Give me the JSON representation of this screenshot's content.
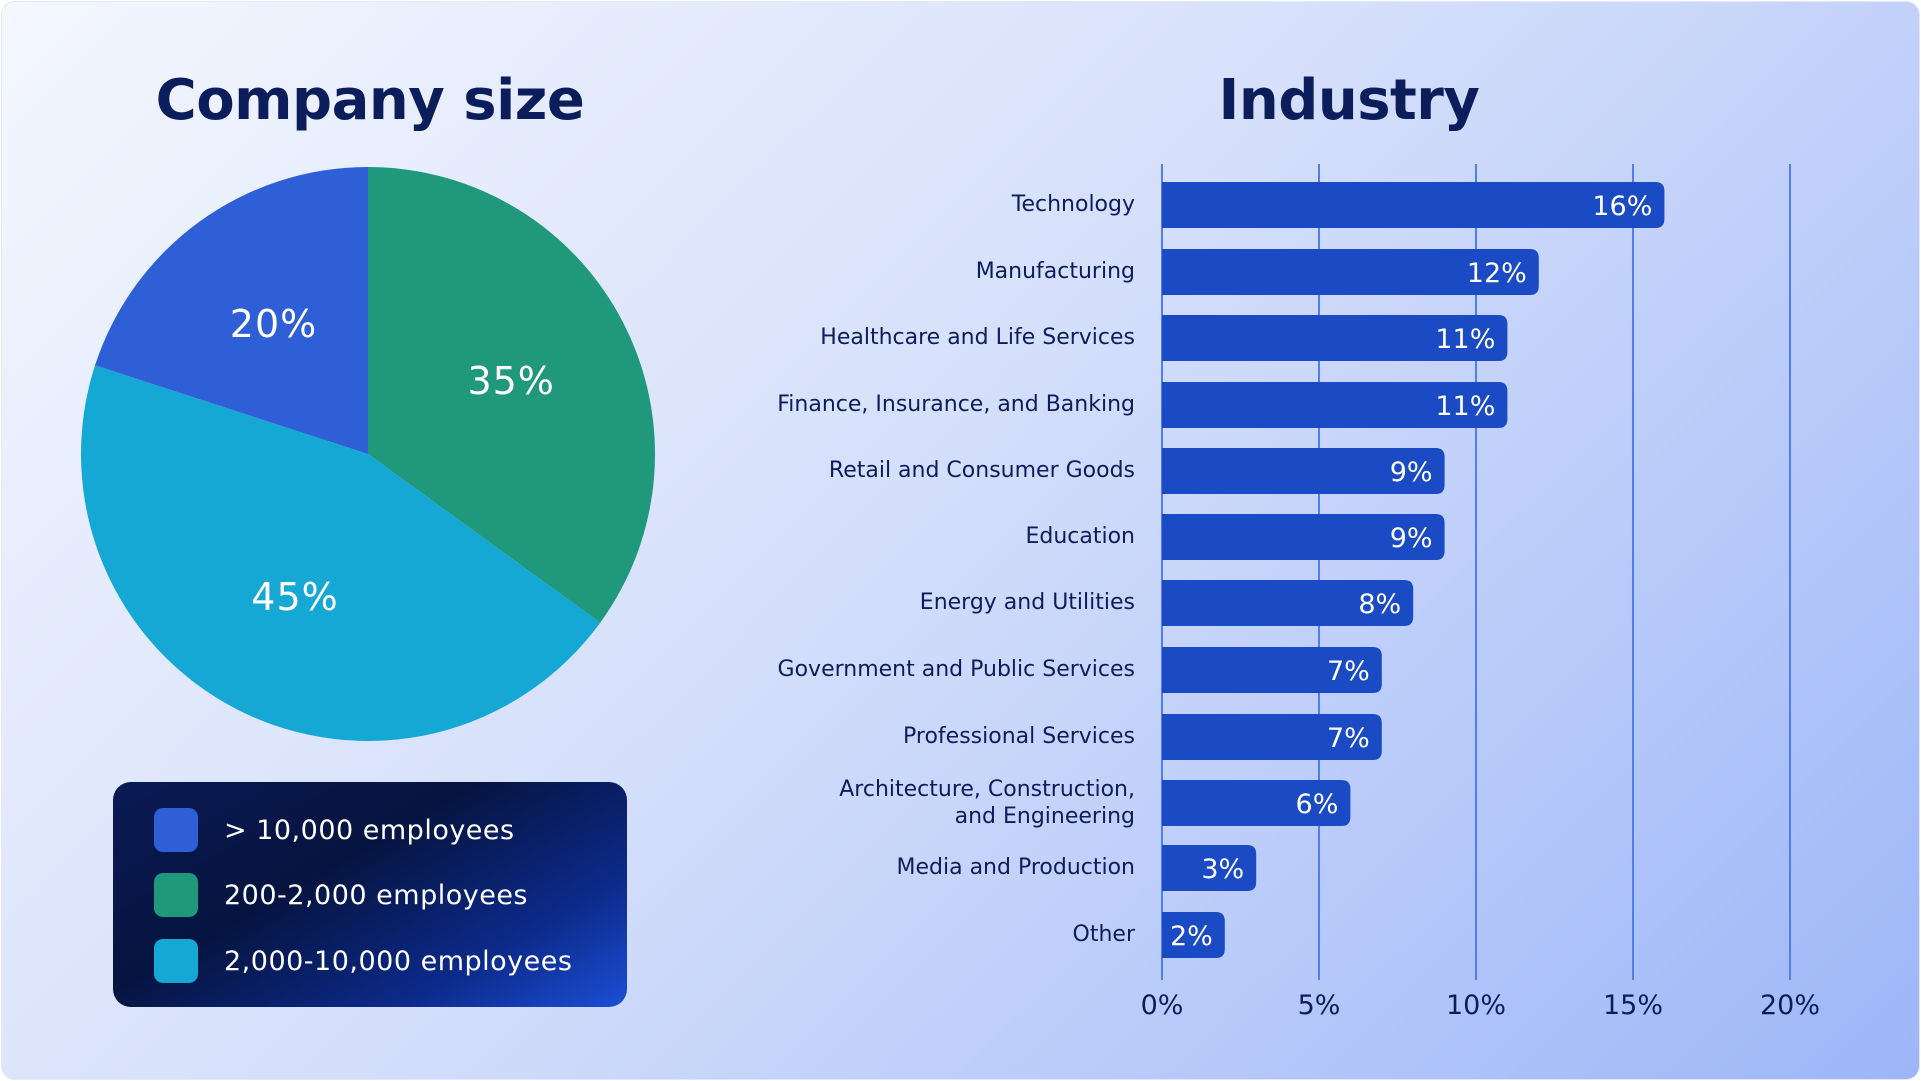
{
  "chart_data": [
    {
      "type": "pie",
      "title": "Company size",
      "slices": [
        {
          "label": "200-2,000 employees",
          "value": 35,
          "display": "35%",
          "color": "#1f987c"
        },
        {
          "label": "2,000-10,000 employees",
          "value": 45,
          "display": "45%",
          "color": "#15a8d4"
        },
        {
          "label": "> 10,000 employees",
          "value": 20,
          "display": "20%",
          "color": "#2e5fd6"
        }
      ],
      "legend": {
        "placement": "bottom",
        "items": [
          {
            "label": "> 10,000 employees",
            "color": "#2e5fd6"
          },
          {
            "label": "200-2,000 employees",
            "color": "#1f987c"
          },
          {
            "label": "2,000-10,000 employees",
            "color": "#15a8d4"
          }
        ]
      }
    },
    {
      "type": "bar",
      "orientation": "horizontal",
      "title": "Industry",
      "categories": [
        "Technology",
        "Manufacturing",
        "Healthcare and Life Services",
        "Finance, Insurance, and Banking",
        "Retail and Consumer Goods",
        "Education",
        "Energy and Utilities",
        "Government and Public Services",
        "Professional Services",
        "Architecture, Construction, and Engineering",
        "Media and Production",
        "Other"
      ],
      "values": [
        16,
        12,
        11,
        11,
        9,
        9,
        8,
        7,
        7,
        6,
        3,
        2
      ],
      "data_labels": [
        "16%",
        "12%",
        "11%",
        "11%",
        "9%",
        "9%",
        "8%",
        "7%",
        "7%",
        "6%",
        "3%",
        "2%"
      ],
      "xlim": [
        0,
        20
      ],
      "x_ticks": [
        0,
        5,
        10,
        15,
        20
      ],
      "x_tick_labels": [
        "0%",
        "5%",
        "10%",
        "15%",
        "20%"
      ],
      "grid": "vertical",
      "bar_color": "#1a4ac4",
      "grid_color": "#4f7ef0"
    }
  ]
}
